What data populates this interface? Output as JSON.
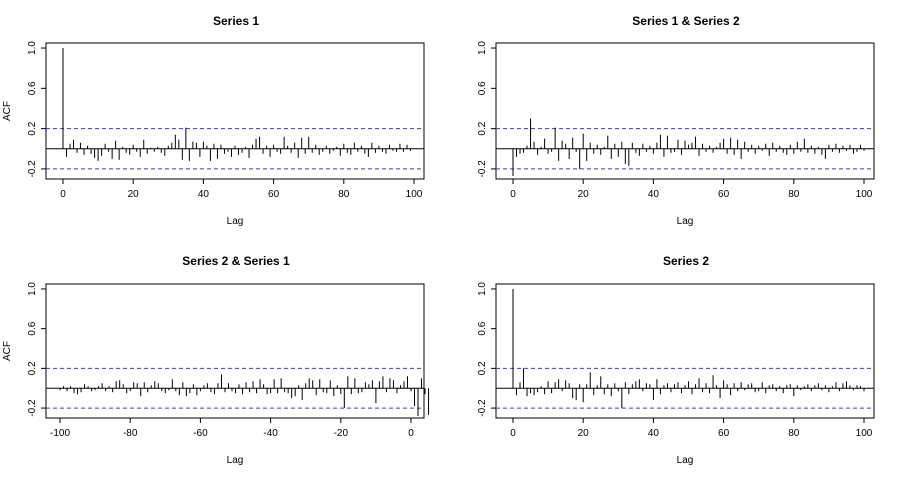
{
  "chart_data": [
    {
      "type": "bar",
      "title": "Series 1",
      "xlabel": "Lag",
      "ylabel": "ACF",
      "xlim": [
        0,
        100
      ],
      "ylim": [
        -0.3,
        1.05
      ],
      "xticks": [
        0,
        20,
        40,
        60,
        80,
        100
      ],
      "yticks": [
        -0.2,
        0.2,
        0.6,
        1.0
      ],
      "ytick_labels": [
        "-0.2",
        "0.2",
        "0.6",
        "1.0"
      ],
      "ci": 0.2,
      "lags_start": 0,
      "values": [
        1.0,
        -0.08,
        0.05,
        0.09,
        -0.04,
        0.06,
        -0.06,
        0.03,
        -0.05,
        -0.09,
        -0.12,
        -0.07,
        0.05,
        -0.03,
        -0.1,
        0.08,
        -0.11,
        0.02,
        -0.04,
        -0.06,
        0.04,
        -0.03,
        -0.08,
        0.09,
        -0.05,
        0.01,
        -0.03,
        0.02,
        -0.04,
        -0.07,
        0.03,
        0.06,
        0.14,
        0.09,
        -0.11,
        0.21,
        -0.12,
        0.07,
        0.06,
        -0.08,
        0.07,
        0.03,
        -0.12,
        0.05,
        -0.1,
        0.04,
        -0.05,
        -0.03,
        -0.08,
        0.03,
        -0.06,
        -0.04,
        0.02,
        -0.09,
        0.04,
        0.1,
        0.12,
        -0.05,
        0.03,
        -0.08,
        0.04,
        -0.03,
        -0.05,
        0.12,
        0.03,
        -0.04,
        0.06,
        -0.09,
        0.11,
        -0.05,
        0.12,
        -0.04,
        0.04,
        -0.06,
        -0.03,
        0.03,
        -0.05,
        -0.02,
        0.02,
        -0.07,
        0.05,
        -0.04,
        -0.06,
        0.06,
        -0.03,
        0.03,
        -0.05,
        -0.08,
        0.06,
        -0.04,
        0.03,
        -0.03,
        -0.05,
        0.04,
        -0.02,
        -0.03,
        0.05,
        -0.03,
        0.04,
        -0.02
      ]
    },
    {
      "type": "bar",
      "title": "Series 1 & Series 2",
      "xlabel": "Lag",
      "ylabel": "",
      "xlim": [
        0,
        100
      ],
      "ylim": [
        -0.3,
        1.05
      ],
      "xticks": [
        0,
        20,
        40,
        60,
        80,
        100
      ],
      "yticks": [
        -0.2,
        0.2,
        0.6,
        1.0
      ],
      "ytick_labels": [
        "-0.2",
        "0.2",
        "0.6",
        "1.0"
      ],
      "ci": 0.2,
      "lags_start": 0,
      "values": [
        -0.27,
        -0.08,
        -0.05,
        -0.04,
        0.03,
        0.3,
        0.07,
        -0.06,
        0.02,
        0.1,
        -0.05,
        -0.03,
        0.21,
        -0.12,
        0.08,
        0.05,
        -0.1,
        0.11,
        -0.03,
        -0.2,
        0.15,
        -0.12,
        0.06,
        -0.05,
        0.04,
        -0.06,
        0.02,
        0.13,
        -0.1,
        0.05,
        -0.08,
        0.07,
        -0.15,
        -0.17,
        0.06,
        -0.04,
        -0.07,
        0.05,
        -0.03,
        0.03,
        -0.05,
        0.06,
        0.14,
        -0.08,
        0.13,
        -0.04,
        -0.03,
        0.09,
        -0.06,
        0.08,
        0.04,
        0.06,
        0.12,
        -0.07,
        0.05,
        -0.03,
        0.03,
        -0.04,
        0.02,
        0.06,
        0.1,
        -0.05,
        0.11,
        -0.06,
        0.09,
        -0.1,
        0.07,
        -0.03,
        0.04,
        -0.05,
        0.03,
        -0.02,
        0.05,
        -0.07,
        0.06,
        -0.03,
        0.03,
        -0.04,
        -0.06,
        0.04,
        -0.05,
        0.07,
        -0.03,
        0.1,
        -0.04,
        0.03,
        -0.05,
        0.02,
        -0.06,
        -0.1,
        0.04,
        -0.03,
        0.05,
        -0.04,
        0.03,
        -0.02,
        0.04,
        -0.05,
        -0.03,
        0.04,
        -0.02
      ]
    },
    {
      "type": "bar",
      "title": "Series 2 & Series 1",
      "xlabel": "Lag",
      "ylabel": "ACF",
      "xlim": [
        -100,
        0
      ],
      "ylim": [
        -0.3,
        1.05
      ],
      "xticks": [
        -100,
        -80,
        -60,
        -40,
        -20,
        0
      ],
      "yticks": [
        -0.2,
        0.2,
        0.6,
        1.0
      ],
      "ytick_labels": [
        "-0.2",
        "0.2",
        "0.6",
        "1.0"
      ],
      "ci": 0.2,
      "lags_start": -100,
      "values": [
        -0.02,
        0.02,
        -0.03,
        0.02,
        -0.05,
        -0.06,
        -0.04,
        0.04,
        0.02,
        -0.03,
        -0.02,
        0.02,
        0.05,
        -0.03,
        0.02,
        -0.04,
        0.07,
        0.08,
        0.04,
        -0.05,
        -0.03,
        0.06,
        0.05,
        -0.08,
        0.06,
        -0.04,
        0.03,
        0.07,
        0.05,
        -0.03,
        -0.05,
        -0.02,
        0.09,
        -0.03,
        -0.07,
        0.06,
        -0.08,
        -0.05,
        0.04,
        -0.07,
        -0.03,
        0.03,
        0.05,
        -0.04,
        -0.06,
        0.05,
        0.14,
        -0.04,
        0.05,
        -0.03,
        -0.05,
        0.04,
        -0.06,
        0.06,
        -0.04,
        0.07,
        -0.05,
        0.09,
        0.04,
        -0.06,
        -0.05,
        0.09,
        -0.05,
        0.1,
        -0.04,
        -0.05,
        -0.1,
        -0.08,
        0.03,
        -0.12,
        0.05,
        0.1,
        0.08,
        -0.07,
        0.09,
        -0.04,
        -0.05,
        0.08,
        -0.08,
        0.03,
        -0.06,
        -0.2,
        0.12,
        -0.06,
        0.1,
        -0.05,
        -0.04,
        0.06,
        0.04,
        0.08,
        -0.15,
        0.07,
        0.12,
        -0.04,
        0.1,
        0.08,
        -0.05,
        0.03,
        0.07,
        0.12,
        -0.03,
        -0.18,
        -0.28,
        0.1,
        -0.06,
        -0.27
      ]
    },
    {
      "type": "bar",
      "title": "Series 2",
      "xlabel": "Lag",
      "ylabel": "",
      "xlim": [
        0,
        100
      ],
      "ylim": [
        -0.3,
        1.05
      ],
      "xticks": [
        0,
        20,
        40,
        60,
        80,
        100
      ],
      "yticks": [
        -0.2,
        0.2,
        0.6,
        1.0
      ],
      "ytick_labels": [
        "-0.2",
        "0.2",
        "0.6",
        "1.0"
      ],
      "ci": 0.2,
      "lags_start": 0,
      "values": [
        1.0,
        -0.07,
        0.06,
        0.2,
        -0.08,
        -0.05,
        -0.07,
        -0.04,
        0.02,
        -0.06,
        0.07,
        -0.05,
        0.06,
        0.09,
        -0.03,
        0.08,
        0.05,
        -0.1,
        -0.12,
        0.04,
        -0.14,
        0.04,
        0.16,
        -0.07,
        0.03,
        0.12,
        -0.06,
        0.04,
        -0.08,
        0.05,
        -0.03,
        -0.2,
        0.06,
        -0.06,
        0.04,
        0.07,
        0.09,
        -0.03,
        0.05,
        0.04,
        -0.12,
        0.09,
        -0.06,
        0.03,
        0.05,
        -0.04,
        0.04,
        0.06,
        -0.05,
        0.03,
        0.07,
        -0.06,
        0.04,
        0.1,
        -0.04,
        0.05,
        -0.05,
        0.13,
        0.03,
        -0.1,
        0.08,
        0.04,
        -0.07,
        0.05,
        -0.03,
        0.06,
        -0.02,
        0.04,
        0.05,
        -0.04,
        -0.03,
        0.06,
        -0.05,
        0.03,
        0.04,
        -0.03,
        0.02,
        -0.05,
        0.03,
        0.04,
        -0.08,
        0.03,
        -0.02,
        0.02,
        0.04,
        -0.03,
        0.03,
        0.05,
        -0.02,
        0.03,
        -0.04,
        0.02,
        0.06,
        -0.03,
        0.05,
        0.07,
        0.03,
        -0.02,
        0.03,
        0.02,
        -0.03
      ]
    }
  ]
}
